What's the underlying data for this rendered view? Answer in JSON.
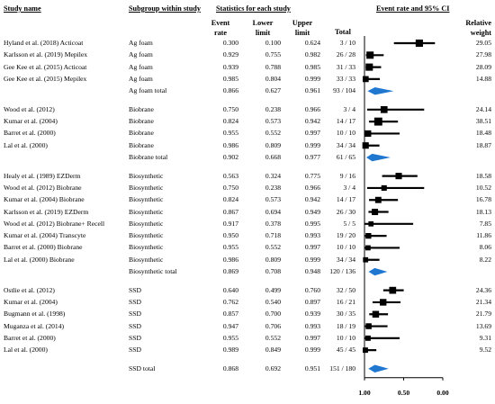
{
  "headers": {
    "study_name": "Study name",
    "subgroup": "Subgroup within study",
    "statistics": "Statistics for each study",
    "event_rate_ci": "Event rate and 95% CI",
    "col_event_rate": [
      "Event",
      "rate"
    ],
    "col_lower": [
      "Lower",
      "limit"
    ],
    "col_upper": [
      "Upper",
      "limit"
    ],
    "col_total": "Total",
    "col_weight": [
      "Relative",
      "weight"
    ]
  },
  "chart_data": {
    "type": "forest",
    "x_axis": {
      "orientation": "reversed",
      "ticks": [
        1.0,
        0.5,
        0.0
      ],
      "tick_labels": [
        "1.00",
        "0.50",
        "0.00"
      ],
      "range": [
        1.0,
        0.0
      ],
      "reference_line": 1.0
    },
    "rows": [
      {
        "study": "Hyland et al. (2018) Acticoat",
        "subgroup": "Ag foam",
        "rate": "0.300",
        "lower": "0.100",
        "upper": "0.624",
        "total": "3 / 10",
        "weight": "29.05",
        "kind": "study"
      },
      {
        "study": "Karlsson et al. (2019) Mepilex",
        "subgroup": "Ag foam",
        "rate": "0.929",
        "lower": "0.755",
        "upper": "0.982",
        "total": "26 / 28",
        "weight": "27.98",
        "kind": "study"
      },
      {
        "study": "Gee Kee et al. (2015) Acticoat",
        "subgroup": "Ag foam",
        "rate": "0.939",
        "lower": "0.788",
        "upper": "0.985",
        "total": "31 / 33",
        "weight": "28.09",
        "kind": "study"
      },
      {
        "study": "Gee Kee et al. (2015) Mepilex",
        "subgroup": "Ag foam",
        "rate": "0.985",
        "lower": "0.804",
        "upper": "0.999",
        "total": "33 / 33",
        "weight": "14.88",
        "kind": "study"
      },
      {
        "study": "",
        "subgroup": "Ag foam total",
        "rate": "0.866",
        "lower": "0.627",
        "upper": "0.961",
        "total": "93 / 104",
        "weight": "",
        "kind": "total"
      },
      {
        "kind": "gap"
      },
      {
        "study": "Wood et al. (2012)",
        "subgroup": "Biobrane",
        "rate": "0.750",
        "lower": "0.238",
        "upper": "0.966",
        "total": "3 / 4",
        "weight": "24.14",
        "kind": "study"
      },
      {
        "study": "Kumar et al. (2004)",
        "subgroup": "Biobrane",
        "rate": "0.824",
        "lower": "0.573",
        "upper": "0.942",
        "total": "14 / 17",
        "weight": "38.51",
        "kind": "study"
      },
      {
        "study": "Barret et al. (2000)",
        "subgroup": "Biobrane",
        "rate": "0.955",
        "lower": "0.552",
        "upper": "0.997",
        "total": "10 / 10",
        "weight": "18.48",
        "kind": "study"
      },
      {
        "study": "Lal et al. (2000)",
        "subgroup": "Biobrane",
        "rate": "0.986",
        "lower": "0.809",
        "upper": "0.999",
        "total": "34 / 34",
        "weight": "18.87",
        "kind": "study"
      },
      {
        "study": "",
        "subgroup": "Biobrane total",
        "rate": "0.902",
        "lower": "0.668",
        "upper": "0.977",
        "total": "61 / 65",
        "weight": "",
        "kind": "total"
      },
      {
        "kind": "gap"
      },
      {
        "study": "Healy et al. (1989) EZDerm",
        "subgroup": "Biosynthetic",
        "rate": "0.563",
        "lower": "0.324",
        "upper": "0.775",
        "total": "9 / 16",
        "weight": "18.58",
        "kind": "study"
      },
      {
        "study": "Wood et al. (2012) Biobrane",
        "subgroup": "Biosynthetic",
        "rate": "0.750",
        "lower": "0.238",
        "upper": "0.966",
        "total": "3 / 4",
        "weight": "10.52",
        "kind": "study"
      },
      {
        "study": "Kumar et al. (2004) Biobrane",
        "subgroup": "Biosynthetic",
        "rate": "0.824",
        "lower": "0.573",
        "upper": "0.942",
        "total": "14 / 17",
        "weight": "16.78",
        "kind": "study"
      },
      {
        "study": "Karlsson et al. (2019) EZDerm",
        "subgroup": "Biosynthetic",
        "rate": "0.867",
        "lower": "0.694",
        "upper": "0.949",
        "total": "26 / 30",
        "weight": "18.13",
        "kind": "study"
      },
      {
        "study": "Wood et al. (2012) Biobrane+ Recell",
        "subgroup": "Biosynthetic",
        "rate": "0.917",
        "lower": "0.378",
        "upper": "0.995",
        "total": "5 / 5",
        "weight": "7.85",
        "kind": "study"
      },
      {
        "study": "Kumar et al. (2004) Transcyte",
        "subgroup": "Biosynthetic",
        "rate": "0.950",
        "lower": "0.718",
        "upper": "0.993",
        "total": "19 / 20",
        "weight": "11.86",
        "kind": "study"
      },
      {
        "study": "Barret et al. (2000) Biobrane",
        "subgroup": "Biosynthetic",
        "rate": "0.955",
        "lower": "0.552",
        "upper": "0.997",
        "total": "10 / 10",
        "weight": "8.06",
        "kind": "study"
      },
      {
        "study": "Lal et al. (2000) Biobrane",
        "subgroup": "Biosynthetic",
        "rate": "0.986",
        "lower": "0.809",
        "upper": "0.999",
        "total": "34 / 34",
        "weight": "8.22",
        "kind": "study"
      },
      {
        "study": "",
        "subgroup": "Biosynthetic total",
        "rate": "0.869",
        "lower": "0.708",
        "upper": "0.948",
        "total": "120 / 136",
        "weight": "",
        "kind": "total"
      },
      {
        "kind": "gap"
      },
      {
        "study": "Ostlie et al. (2012)",
        "subgroup": "SSD",
        "rate": "0.640",
        "lower": "0.499",
        "upper": "0.760",
        "total": "32 / 50",
        "weight": "24.36",
        "kind": "study"
      },
      {
        "study": "Kumar et al. (2004)",
        "subgroup": "SSD",
        "rate": "0.762",
        "lower": "0.540",
        "upper": "0.897",
        "total": "16 / 21",
        "weight": "21.34",
        "kind": "study"
      },
      {
        "study": "Bugmann et al. (1998)",
        "subgroup": "SSD",
        "rate": "0.857",
        "lower": "0.700",
        "upper": "0.939",
        "total": "30 / 35",
        "weight": "21.79",
        "kind": "study"
      },
      {
        "study": "Muganza et al. (2014)",
        "subgroup": "SSD",
        "rate": "0.947",
        "lower": "0.706",
        "upper": "0.993",
        "total": "18 / 19",
        "weight": "13.69",
        "kind": "study"
      },
      {
        "study": "Barret et al. (2000)",
        "subgroup": "SSD",
        "rate": "0.955",
        "lower": "0.552",
        "upper": "0.997",
        "total": "10 / 10",
        "weight": "9.31",
        "kind": "study"
      },
      {
        "study": "Lal et al. (2000)",
        "subgroup": "SSD",
        "rate": "0.989",
        "lower": "0.849",
        "upper": "0.999",
        "total": "45 / 45",
        "weight": "9.52",
        "kind": "study"
      },
      {
        "kind": "gap"
      },
      {
        "study": "",
        "subgroup": "SSD total",
        "rate": "0.868",
        "lower": "0.692",
        "upper": "0.951",
        "total": "151 / 180",
        "weight": "",
        "kind": "total"
      }
    ],
    "colors": {
      "marker": "#000000",
      "diamond": "#1f77d0",
      "line": "#000000"
    }
  }
}
